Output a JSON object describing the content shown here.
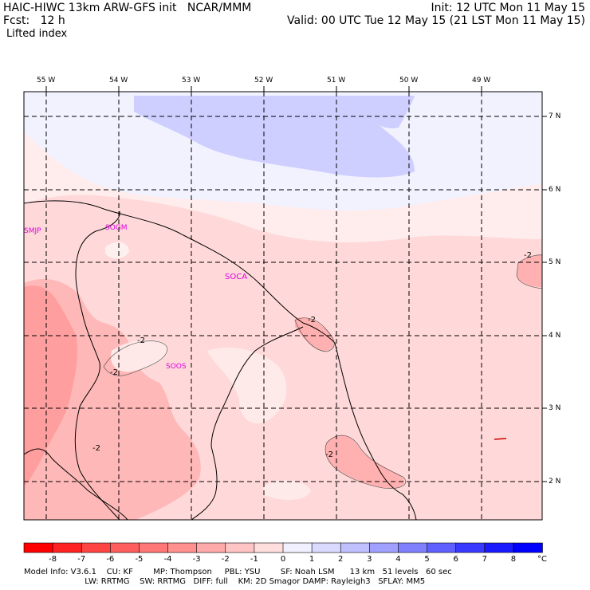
{
  "header": {
    "title": "HAIC-HIWC 13km ARW-GFS init   NCAR/MMM",
    "init": "Init: 12 UTC Mon 11 May 15",
    "fcst": "Fcst:   12 h",
    "valid": "Valid: 00 UTC Tue 12 May 15 (21 LST Mon 11 May 15)",
    "field": "Lifted index"
  },
  "longitudes": [
    "55 W",
    "54 W",
    "53 W",
    "52 W",
    "51 W",
    "50 W",
    "49 W"
  ],
  "latitudes": [
    "7 N",
    "6 N",
    "5 N",
    "4 N",
    "3 N",
    "2 N"
  ],
  "stations": [
    "SMJP",
    "SOGM",
    "SOCA",
    "SOOS"
  ],
  "contour_labels": [
    "-2",
    "-2",
    "-2",
    "-2",
    "-2",
    "-2"
  ],
  "colorbar": {
    "ticks": [
      "-8",
      "-7",
      "-6",
      "-5",
      "-4",
      "-3",
      "-2",
      "-1",
      "0",
      "1",
      "2",
      "3",
      "4",
      "5",
      "6",
      "7",
      "8"
    ],
    "unit": "°C",
    "colors": [
      "#ff0000",
      "#ff2222",
      "#ff4444",
      "#ff5e5e",
      "#ff7777",
      "#ff9090",
      "#ffaaaa",
      "#ffc4c4",
      "#ffdede",
      "#f0f0ff",
      "#dadaff",
      "#c0c0ff",
      "#a0a0ff",
      "#8080ff",
      "#6060ff",
      "#3a3aff",
      "#1a1aff",
      "#0000ff"
    ]
  },
  "model_info": {
    "line1": "Model Info: V3.6.1    CU: KF        MP: Thompson     PBL: YSU        SF: Noah LSM      13 km   51 levels   60 sec",
    "line2": "                        LW: RRTMG    SW: RRTMG   DIFF: full    KM: 2D Smagor DAMP: Rayleigh3   SFLAY: MM5"
  }
}
